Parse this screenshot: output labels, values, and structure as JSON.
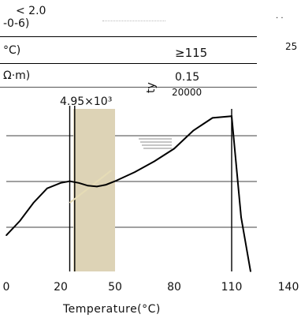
{
  "fragments": {
    "top_value": "< 2.0",
    "top_unit": "-0-6)",
    "temp_unit": "°C)",
    "temp_value": "≥115",
    "res_unit": "Ω·m)",
    "res_value": "0.15",
    "right_value": "25"
  },
  "chart_data": {
    "type": "line",
    "xlabel": "Temperature(°C)",
    "ylabel": "ty",
    "x_ticks": [
      "0",
      "20",
      "50",
      "80",
      "110",
      "140"
    ],
    "xlim": [
      0,
      140
    ],
    "annotations": {
      "left_peak": "4.95×10³",
      "right_peak": "20000"
    },
    "shaded_band": {
      "from": 27,
      "to": 50
    },
    "vertical_lines": [
      25,
      26,
      110
    ],
    "grid": "horizontal",
    "colors": {
      "curve": "#000000",
      "band": "#ddd3b6",
      "accent": "#c9b98a"
    },
    "series": [
      {
        "x": [
          0,
          5,
          10,
          15,
          20,
          25,
          30,
          35,
          40,
          45,
          50,
          60,
          70,
          80,
          90,
          100,
          110,
          115,
          120
        ],
        "y": [
          2,
          2.8,
          3.8,
          4.6,
          4.9,
          5.0,
          4.9,
          4.75,
          4.7,
          4.8,
          5.0,
          5.5,
          6.1,
          6.8,
          7.8,
          8.5,
          8.6,
          3.0,
          0
        ]
      }
    ]
  }
}
